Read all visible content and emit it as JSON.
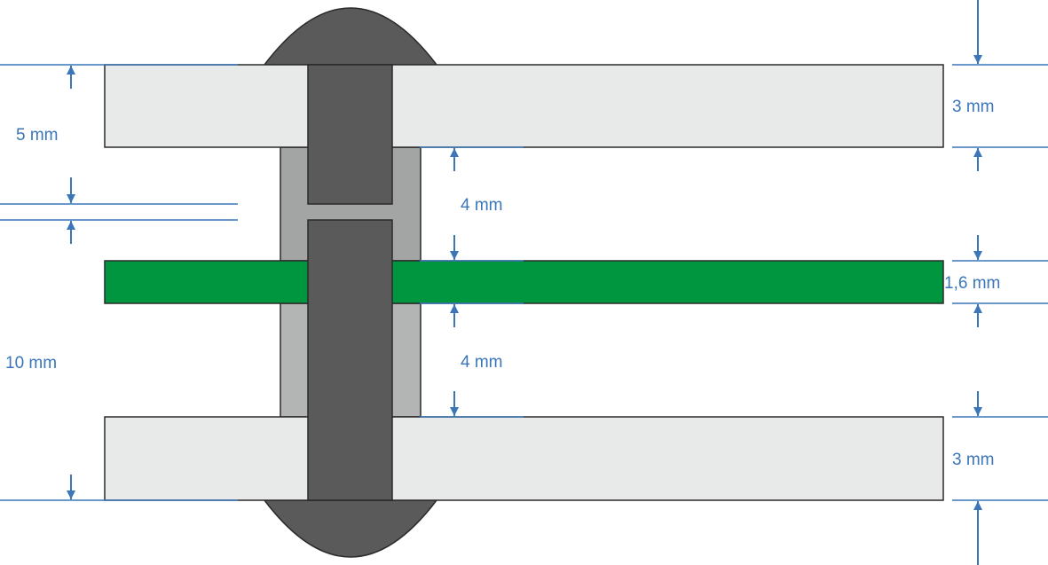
{
  "colors": {
    "plate": "#e8e9e9",
    "pcb": "#009640",
    "rivet_head": "#5a5a5a",
    "spacer_top": "#a3a4a4",
    "spacer_bottom": "#b3b4b4",
    "dimension": "#3a76b8",
    "outline": "#2a2a2a"
  },
  "labels": {
    "left_top": "5 mm",
    "left_bottom": "10 mm",
    "gap_top": "4 mm",
    "gap_bottom": "4 mm",
    "plate_top": "3 mm",
    "pcb": "1,6 mm",
    "plate_bottom": "3 mm"
  }
}
